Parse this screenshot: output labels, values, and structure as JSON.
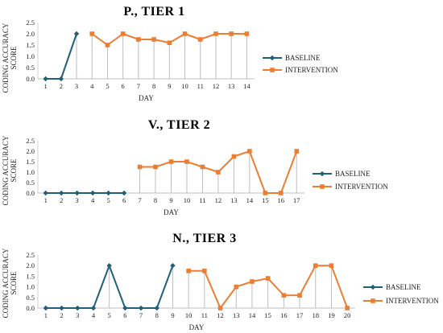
{
  "chart_data": [
    {
      "type": "line",
      "title": "P., TIER 1",
      "xlabel": "DAY",
      "ylabel": [
        "CODING ACCURACY",
        "SCORE"
      ],
      "ylim": [
        0,
        2.5
      ],
      "yticks": [
        "0.0",
        "0.5",
        "1.0",
        "1.5",
        "2.0",
        "2.5"
      ],
      "categories": [
        "1",
        "2",
        "3",
        "4",
        "5",
        "6",
        "7",
        "8",
        "9",
        "10",
        "11",
        "12",
        "13",
        "14"
      ],
      "series": [
        {
          "name": "BASELINE",
          "color": "#1f5f7a",
          "marker": "diamond",
          "x": [
            1,
            2,
            3
          ],
          "values": [
            0,
            0,
            2.0
          ]
        },
        {
          "name": "INTERVENTION",
          "color": "#ed7d31",
          "marker": "square",
          "x": [
            4,
            5,
            6,
            7,
            8,
            9,
            10,
            11,
            12,
            13,
            14
          ],
          "values": [
            2.0,
            1.5,
            2.0,
            1.75,
            1.75,
            1.6,
            2.0,
            1.75,
            2.0,
            2.0,
            2.0
          ]
        }
      ],
      "legend_position": "right",
      "grid": false
    },
    {
      "type": "line",
      "title": "V., TIER 2",
      "xlabel": "DAY",
      "ylabel": [
        "CODING ACCURACY",
        "SCORE"
      ],
      "ylim": [
        0,
        2.5
      ],
      "yticks": [
        "0.0",
        "0.5",
        "1.0",
        "1.5",
        "2.0",
        "2.5"
      ],
      "categories": [
        "1",
        "2",
        "3",
        "4",
        "5",
        "6",
        "7",
        "8",
        "9",
        "10",
        "11",
        "12",
        "13",
        "14",
        "15",
        "16",
        "17"
      ],
      "series": [
        {
          "name": "BASELINE",
          "color": "#1f5f7a",
          "marker": "diamond",
          "x": [
            1,
            2,
            3,
            4,
            5,
            6
          ],
          "values": [
            0,
            0,
            0,
            0,
            0,
            0
          ]
        },
        {
          "name": "INTERVENTION",
          "color": "#ed7d31",
          "marker": "square",
          "x": [
            7,
            8,
            9,
            10,
            11,
            12,
            13,
            14,
            15,
            16,
            17
          ],
          "values": [
            1.25,
            1.25,
            1.5,
            1.5,
            1.25,
            1.0,
            1.75,
            2.0,
            0,
            0,
            2.0
          ]
        }
      ],
      "legend_position": "right",
      "grid": false
    },
    {
      "type": "line",
      "title": "N., TIER 3",
      "xlabel": "DAY",
      "ylabel": [
        "CODING ACCURACY",
        "SCORE"
      ],
      "ylim": [
        0,
        2.5
      ],
      "yticks": [
        "0.0",
        "0.5",
        "1.0",
        "1.5",
        "2.0",
        "2.5"
      ],
      "categories": [
        "1",
        "2",
        "3",
        "4",
        "5",
        "6",
        "7",
        "8",
        "9",
        "10",
        "11",
        "12",
        "13",
        "14",
        "15",
        "16",
        "17",
        "18",
        "19",
        "20"
      ],
      "series": [
        {
          "name": "BASELINE",
          "color": "#1f5f7a",
          "marker": "diamond",
          "x": [
            1,
            2,
            3,
            4,
            5,
            6,
            7,
            8,
            9
          ],
          "values": [
            0,
            0,
            0,
            0,
            2.0,
            0,
            0,
            0,
            2.0
          ]
        },
        {
          "name": "INTERVENTION",
          "color": "#ed7d31",
          "marker": "square",
          "x": [
            10,
            11,
            12,
            13,
            14,
            15,
            16,
            17,
            18,
            19,
            20
          ],
          "values": [
            1.75,
            1.75,
            0,
            1.0,
            1.25,
            1.4,
            0.6,
            0.6,
            2.0,
            2.0,
            0
          ]
        }
      ],
      "legend_position": "right",
      "grid": false
    }
  ]
}
